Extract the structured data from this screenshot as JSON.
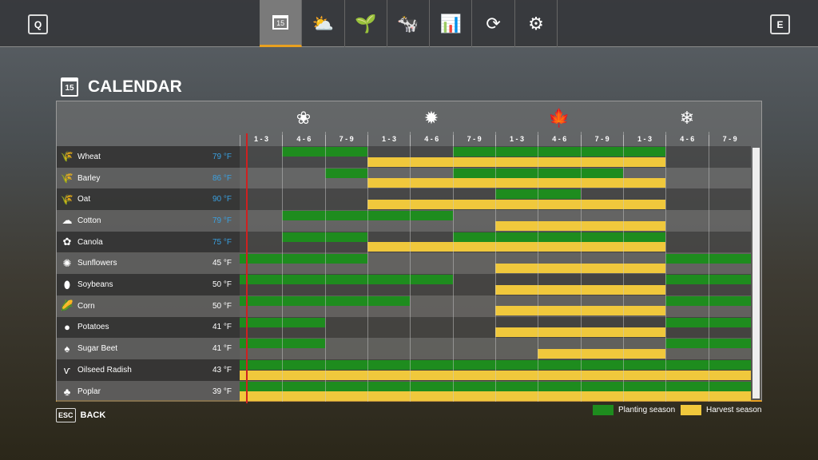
{
  "topbar": {
    "left_key": "Q",
    "right_key": "E",
    "active_tab": 0,
    "tabs": [
      {
        "icon": "calendar-icon",
        "glyph": "15"
      },
      {
        "icon": "weather-icon",
        "glyph": "⛅"
      },
      {
        "icon": "seedling-icon",
        "glyph": "🌱"
      },
      {
        "icon": "animals-icon",
        "glyph": "🐄"
      },
      {
        "icon": "statistics-icon",
        "glyph": "📊"
      },
      {
        "icon": "economy-cycle-icon",
        "glyph": "⟳"
      },
      {
        "icon": "settings-icon",
        "glyph": "⚙"
      }
    ]
  },
  "header": {
    "title": "CALENDAR",
    "icon_day": "15"
  },
  "seasons": [
    {
      "icon": "spring-flower-icon",
      "glyph": "❀"
    },
    {
      "icon": "summer-sun-icon",
      "glyph": "✹"
    },
    {
      "icon": "autumn-leaf-icon",
      "glyph": "🍁"
    },
    {
      "icon": "winter-snowflake-icon",
      "glyph": "❄"
    }
  ],
  "columns": [
    "1 - 3",
    "4 - 6",
    "7 - 9",
    "1 - 3",
    "4 - 6",
    "7 - 9",
    "1 - 3",
    "4 - 6",
    "7 - 9",
    "1 - 3",
    "4 - 6",
    "7 - 9"
  ],
  "current_period_fraction": 0.013,
  "colors": {
    "planting": "#1e8c1e",
    "harvest": "#f0c83c",
    "temp_highlight": "#3aa0e0",
    "accent": "#e8a020",
    "current_marker": "#d02020"
  },
  "crops": [
    {
      "name": "Wheat",
      "temp": "79 °F",
      "temp_highlight": true,
      "icon": "wheat-icon",
      "glyph": "🌾",
      "planting": [
        [
          1,
          2
        ],
        [
          5,
          9
        ]
      ],
      "harvest": [
        [
          3,
          9
        ]
      ]
    },
    {
      "name": "Barley",
      "temp": "86 °F",
      "temp_highlight": true,
      "icon": "barley-icon",
      "glyph": "🌾",
      "planting": [
        [
          2,
          2
        ],
        [
          5,
          8
        ]
      ],
      "harvest": [
        [
          3,
          9
        ]
      ]
    },
    {
      "name": "Oat",
      "temp": "90 °F",
      "temp_highlight": true,
      "icon": "oat-icon",
      "glyph": "🌾",
      "planting": [
        [
          6,
          7
        ]
      ],
      "harvest": [
        [
          3,
          9
        ]
      ]
    },
    {
      "name": "Cotton",
      "temp": "79 °F",
      "temp_highlight": true,
      "icon": "cotton-icon",
      "glyph": "☁",
      "planting": [
        [
          1,
          4
        ]
      ],
      "harvest": [
        [
          6,
          9
        ]
      ]
    },
    {
      "name": "Canola",
      "temp": "75 °F",
      "temp_highlight": true,
      "icon": "canola-icon",
      "glyph": "✿",
      "planting": [
        [
          1,
          2
        ],
        [
          5,
          9
        ]
      ],
      "harvest": [
        [
          3,
          9
        ]
      ]
    },
    {
      "name": "Sunflowers",
      "temp": "45 °F",
      "temp_highlight": false,
      "icon": "sunflower-icon",
      "glyph": "✺",
      "planting": [
        [
          0,
          2
        ],
        [
          10,
          11
        ]
      ],
      "harvest": [
        [
          6,
          9
        ]
      ]
    },
    {
      "name": "Soybeans",
      "temp": "50 °F",
      "temp_highlight": false,
      "icon": "soybeans-icon",
      "glyph": "⬮",
      "planting": [
        [
          0,
          4
        ],
        [
          10,
          11
        ]
      ],
      "harvest": [
        [
          6,
          9
        ]
      ]
    },
    {
      "name": "Corn",
      "temp": "50 °F",
      "temp_highlight": false,
      "icon": "corn-icon",
      "glyph": "🌽",
      "planting": [
        [
          0,
          3
        ],
        [
          10,
          11
        ]
      ],
      "harvest": [
        [
          6,
          9
        ]
      ]
    },
    {
      "name": "Potatoes",
      "temp": "41 °F",
      "temp_highlight": false,
      "icon": "potato-icon",
      "glyph": "●",
      "planting": [
        [
          0,
          1
        ],
        [
          10,
          11
        ]
      ],
      "harvest": [
        [
          6,
          9
        ]
      ]
    },
    {
      "name": "Sugar Beet",
      "temp": "41 °F",
      "temp_highlight": false,
      "icon": "sugar-beet-icon",
      "glyph": "♠",
      "planting": [
        [
          0,
          1
        ],
        [
          10,
          11
        ]
      ],
      "harvest": [
        [
          7,
          9
        ]
      ]
    },
    {
      "name": "Oilseed Radish",
      "temp": "43 °F",
      "temp_highlight": false,
      "icon": "oilseed-radish-icon",
      "glyph": "ѵ",
      "planting": [
        [
          0,
          11
        ]
      ],
      "harvest": [
        [
          0,
          11
        ]
      ]
    },
    {
      "name": "Poplar",
      "temp": "39 °F",
      "temp_highlight": false,
      "icon": "poplar-icon",
      "glyph": "♣",
      "planting": [
        [
          0,
          11
        ]
      ],
      "harvest": [
        [
          0,
          11
        ]
      ]
    }
  ],
  "footer": {
    "back_key": "ESC",
    "back_label": "BACK"
  },
  "legend": {
    "planting": "Planting season",
    "harvest": "Harvest season"
  }
}
